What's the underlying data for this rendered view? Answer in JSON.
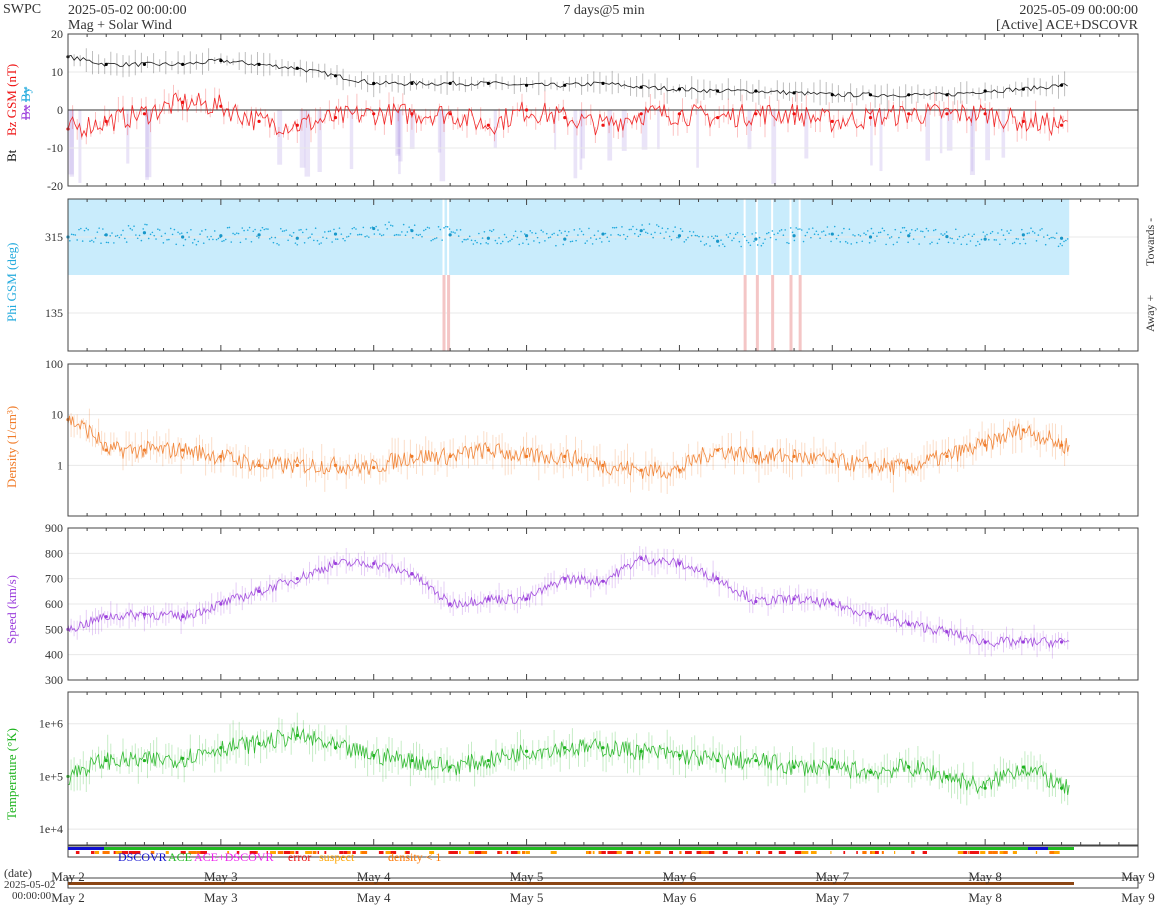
{
  "header": {
    "source": "SWPC",
    "start": "2025-05-02 00:00:00",
    "subtitle": "Mag + Solar Wind",
    "span": "7 days@5 min",
    "end": "2025-05-09 00:00:00",
    "status": "[Active] ACE+DSCOVR"
  },
  "chart_data": [
    {
      "type": "line",
      "panel": "magnetic field",
      "ylabel_parts": [
        "Bt",
        "Bz GSM (nT)",
        "Bx",
        "By"
      ],
      "ylim": [
        -20,
        20
      ],
      "yticks": [
        "20",
        "10",
        "0",
        "-10",
        "-20"
      ],
      "x": [
        0,
        0.25,
        0.5,
        0.75,
        1,
        1.25,
        1.5,
        1.75,
        2,
        2.25,
        2.5,
        2.75,
        3,
        3.25,
        3.5,
        3.75,
        4,
        4.25,
        4.5,
        4.75,
        5,
        5.25,
        5.5,
        5.75,
        6,
        6.25,
        6.5
      ],
      "series": [
        {
          "name": "Bt",
          "color": "#000000",
          "values": [
            14,
            12,
            12,
            12,
            13,
            12,
            11,
            9,
            7,
            7,
            7,
            7,
            6.5,
            6.5,
            7,
            6,
            5.5,
            5,
            5,
            4.5,
            4,
            4,
            4,
            4,
            5,
            5.5,
            6.5
          ]
        },
        {
          "name": "Bz GSM",
          "color": "#ee1111",
          "values": [
            -5,
            -3,
            -1,
            2,
            1,
            -3,
            -4,
            -2,
            -1,
            -1,
            -1,
            -4,
            0,
            -2,
            -4,
            -1,
            -1,
            -2,
            -1,
            -1,
            -3,
            -2,
            -1,
            -1,
            -1,
            -3,
            -4
          ]
        }
      ]
    },
    {
      "type": "scatter",
      "panel": "phi",
      "ylabel": "Phi GSM (deg)",
      "yticks": [
        "315",
        "135"
      ],
      "right_labels": [
        "Towards -",
        "Away +"
      ],
      "x": [
        0,
        0.25,
        0.5,
        0.75,
        1,
        1.25,
        1.5,
        1.75,
        2,
        2.25,
        2.5,
        2.75,
        3,
        3.25,
        3.5,
        3.75,
        4,
        4.25,
        4.5,
        4.75,
        5,
        5.25,
        5.5,
        5.75,
        6,
        6.25,
        6.5
      ],
      "values": [
        315,
        320,
        325,
        315,
        318,
        320,
        312,
        322,
        335,
        330,
        320,
        312,
        318,
        310,
        322,
        330,
        318,
        305,
        310,
        318,
        322,
        315,
        318,
        316,
        310,
        320,
        312
      ]
    },
    {
      "type": "line",
      "panel": "density",
      "ylabel": "Density (1/cm³)",
      "scale": "log",
      "ylim": [
        0.1,
        100
      ],
      "yticks": [
        "100",
        "10",
        "1"
      ],
      "x": [
        0,
        0.25,
        0.5,
        0.75,
        1,
        1.25,
        1.5,
        1.75,
        2,
        2.25,
        2.5,
        2.75,
        3,
        3.25,
        3.5,
        3.75,
        4,
        4.25,
        4.5,
        4.75,
        5,
        5.25,
        5.5,
        5.75,
        6,
        6.25,
        6.5
      ],
      "values": [
        8,
        2,
        2,
        2,
        1.5,
        1,
        1,
        1,
        0.9,
        1.5,
        1.5,
        2,
        1.5,
        1.5,
        1,
        0.8,
        0.8,
        2,
        1.5,
        1.5,
        1.2,
        1,
        0.9,
        1.5,
        2.5,
        5,
        2.5
      ],
      "color": "#f07b28"
    },
    {
      "type": "line",
      "panel": "speed",
      "ylabel": "Speed (km/s)",
      "ylim": [
        300,
        900
      ],
      "yticks": [
        "900",
        "800",
        "700",
        "600",
        "500",
        "400",
        "300"
      ],
      "x": [
        0,
        0.25,
        0.5,
        0.75,
        1,
        1.25,
        1.5,
        1.75,
        2,
        2.25,
        2.5,
        2.75,
        3,
        3.25,
        3.5,
        3.75,
        4,
        4.25,
        4.5,
        4.75,
        5,
        5.25,
        5.5,
        5.75,
        6,
        6.25,
        6.5
      ],
      "values": [
        500,
        550,
        560,
        550,
        600,
        650,
        700,
        760,
        760,
        720,
        600,
        620,
        620,
        700,
        690,
        780,
        760,
        700,
        610,
        620,
        600,
        560,
        520,
        490,
        450,
        450,
        450
      ],
      "color": "#9b3fdc"
    },
    {
      "type": "line",
      "panel": "temperature",
      "ylabel": "Temperature (°K)",
      "scale": "log",
      "ylim": [
        5000,
        4000000
      ],
      "yticks": [
        "1e+6",
        "1e+5",
        "1e+4"
      ],
      "x": [
        0,
        0.25,
        0.5,
        0.75,
        1,
        1.25,
        1.5,
        1.75,
        2,
        2.25,
        2.5,
        2.75,
        3,
        3.25,
        3.5,
        3.75,
        4,
        4.25,
        4.5,
        4.75,
        5,
        5.25,
        5.5,
        5.75,
        6,
        6.25,
        6.5
      ],
      "values": [
        100000,
        200000,
        200000,
        220000,
        350000,
        420000,
        600000,
        350000,
        250000,
        200000,
        150000,
        200000,
        300000,
        350000,
        350000,
        300000,
        250000,
        200000,
        200000,
        150000,
        150000,
        120000,
        150000,
        100000,
        60000,
        150000,
        60000
      ],
      "color": "#1fb41f"
    }
  ],
  "x_axis": {
    "ticks": [
      "May 2",
      "May 3",
      "May 4",
      "May 5",
      "May 6",
      "May 7",
      "May 8",
      "May 9"
    ],
    "date_label": "(date)",
    "bottom_date": "2025-05-02",
    "bottom_time": "00:00:00"
  },
  "legend": {
    "items": [
      {
        "label": "DSCOVR",
        "color": "#1010d0"
      },
      {
        "label": "ACE",
        "color": "#22bb22"
      },
      {
        "label": "ACE+DSCOVR",
        "color": "#ee22ee"
      },
      {
        "label": "error",
        "color": "#ee1111"
      },
      {
        "label": "suspect",
        "color": "#ffa500"
      },
      {
        "label": "density < 1",
        "color": "#ff7700"
      }
    ]
  },
  "colors": {
    "phi_band": "#c9ecfc",
    "grid": "#e8e8e8",
    "frame": "#444444"
  }
}
